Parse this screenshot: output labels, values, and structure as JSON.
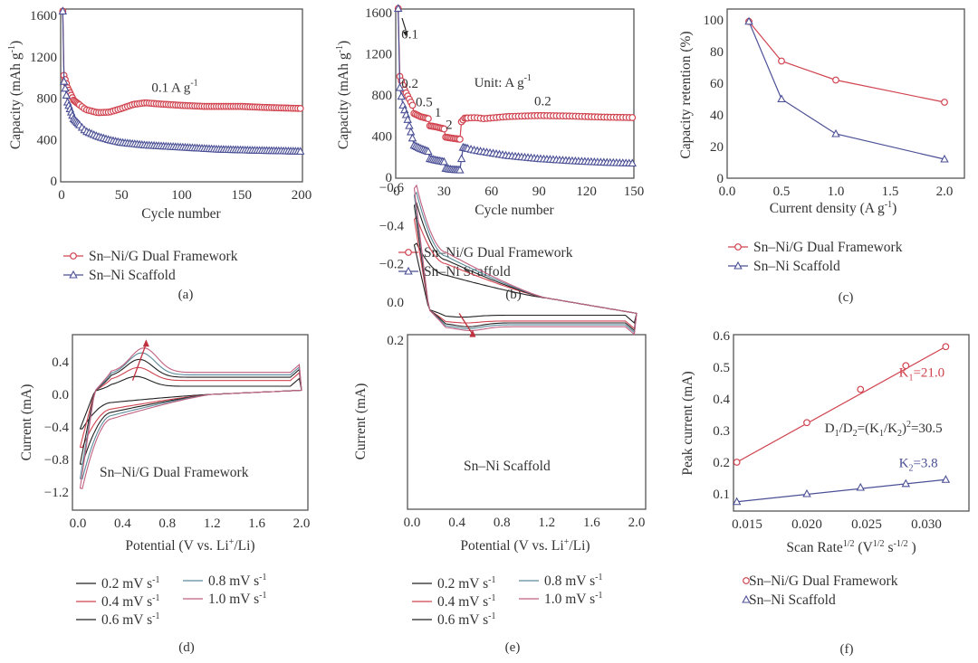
{
  "colors": {
    "red": "#d0434f",
    "blue": "#4a4f95",
    "frame": "#555555",
    "black": "#222222",
    "teal": "#5a8a9a",
    "pink": "#c06080",
    "arrow": "#c0303f"
  },
  "chart_data": [
    {
      "id": "a",
      "type": "scatter",
      "caption": "(a)",
      "xlabel": "Cycle number",
      "ylabel": "Capacity (mAh g^-1)",
      "xlim": [
        0,
        200
      ],
      "ylim": [
        0,
        1650
      ],
      "xticks": [
        0,
        50,
        100,
        150,
        200
      ],
      "yticks": [
        0,
        400,
        800,
        1200,
        1600
      ],
      "annotations": [
        {
          "text": "0.1 A g",
          "sup": "-1",
          "x": 75,
          "y": 860
        }
      ],
      "legend": [
        "Sn–Ni/G Dual Framework",
        "Sn–Ni Scaffold"
      ],
      "series": [
        {
          "name": "Sn–Ni/G Dual Framework",
          "marker": "circle",
          "color": "red",
          "points": [
            [
              1,
              1640
            ],
            [
              2,
              1020
            ],
            [
              5,
              900
            ],
            [
              10,
              780
            ],
            [
              20,
              690
            ],
            [
              30,
              660
            ],
            [
              40,
              665
            ],
            [
              50,
              700
            ],
            [
              60,
              740
            ],
            [
              70,
              755
            ],
            [
              80,
              745
            ],
            [
              100,
              730
            ],
            [
              120,
              720
            ],
            [
              150,
              720
            ],
            [
              170,
              710
            ],
            [
              200,
              700
            ]
          ]
        },
        {
          "name": "Sn–Ni Scaffold",
          "marker": "triangle",
          "color": "blue",
          "points": [
            [
              1,
              1640
            ],
            [
              2,
              960
            ],
            [
              5,
              760
            ],
            [
              10,
              600
            ],
            [
              20,
              480
            ],
            [
              30,
              430
            ],
            [
              40,
              395
            ],
            [
              50,
              370
            ],
            [
              70,
              345
            ],
            [
              100,
              325
            ],
            [
              130,
              305
            ],
            [
              160,
              295
            ],
            [
              200,
              285
            ]
          ]
        }
      ]
    },
    {
      "id": "b",
      "type": "scatter",
      "caption": "(b)",
      "xlabel": "Cycle number",
      "ylabel": "Capacity (mAh g^-1)",
      "xlim": [
        0,
        150
      ],
      "ylim": [
        0,
        1650
      ],
      "xticks": [
        0,
        30,
        60,
        90,
        120,
        150
      ],
      "yticks": [
        0,
        400,
        800,
        1200,
        1600
      ],
      "annotations": [
        {
          "text": "0.1",
          "x": 3,
          "y": 1350
        },
        {
          "text": "0.2",
          "x": 3,
          "y": 870
        },
        {
          "text": "0.5",
          "x": 12,
          "y": 690
        },
        {
          "text": "1",
          "x": 24,
          "y": 590
        },
        {
          "text": "2",
          "x": 31,
          "y": 470
        },
        {
          "text": "Unit: A g",
          "sup": "-1",
          "x": 49,
          "y": 880
        },
        {
          "text": "0.2",
          "x": 87,
          "y": 700
        }
      ],
      "legend": [
        "Sn–Ni/G Dual Framework",
        "Sn–Ni Scaffold"
      ],
      "series": [
        {
          "name": "Sn–Ni/G Dual Framework",
          "marker": "circle",
          "color": "red",
          "points": [
            [
              1,
              1640
            ],
            [
              2,
              980
            ],
            [
              5,
              850
            ],
            [
              10,
              700
            ],
            [
              11,
              620
            ],
            [
              15,
              590
            ],
            [
              20,
              570
            ],
            [
              21,
              500
            ],
            [
              25,
              490
            ],
            [
              30,
              470
            ],
            [
              31,
              390
            ],
            [
              35,
              380
            ],
            [
              40,
              370
            ],
            [
              41,
              540
            ],
            [
              43,
              575
            ],
            [
              50,
              580
            ],
            [
              55,
              570
            ],
            [
              70,
              590
            ],
            [
              90,
              600
            ],
            [
              110,
              595
            ],
            [
              130,
              585
            ],
            [
              150,
              580
            ]
          ]
        },
        {
          "name": "Sn–Ni Scaffold",
          "marker": "triangle",
          "color": "blue",
          "points": [
            [
              1,
              1640
            ],
            [
              2,
              870
            ],
            [
              4,
              700
            ],
            [
              7,
              560
            ],
            [
              10,
              380
            ],
            [
              11,
              310
            ],
            [
              15,
              280
            ],
            [
              20,
              250
            ],
            [
              21,
              180
            ],
            [
              25,
              165
            ],
            [
              30,
              150
            ],
            [
              31,
              85
            ],
            [
              35,
              75
            ],
            [
              40,
              70
            ],
            [
              41,
              180
            ],
            [
              42,
              290
            ],
            [
              50,
              260
            ],
            [
              70,
              210
            ],
            [
              90,
              180
            ],
            [
              110,
              160
            ],
            [
              130,
              145
            ],
            [
              150,
              135
            ]
          ]
        }
      ]
    },
    {
      "id": "c",
      "type": "line",
      "caption": "(c)",
      "xlabel": "Current density (A g^-1)",
      "ylabel": "Capacity retention (%)",
      "xlim": [
        0,
        2.2
      ],
      "ylim": [
        0,
        108
      ],
      "xticks": [
        0.0,
        0.5,
        1.0,
        1.5,
        2.0
      ],
      "yticks": [
        0,
        20,
        40,
        60,
        80,
        100
      ],
      "legend": [
        "Sn–Ni/G Dual Framework",
        "Sn–Ni Scaffold"
      ],
      "x": [
        0.2,
        0.5,
        1.0,
        2.0
      ],
      "series": [
        {
          "name": "Sn–Ni/G Dual Framework",
          "marker": "circle",
          "color": "red",
          "values": [
            99,
            74,
            62,
            48
          ]
        },
        {
          "name": "Sn–Ni Scaffold",
          "marker": "triangle",
          "color": "blue",
          "values": [
            99,
            50,
            28,
            12
          ]
        }
      ]
    },
    {
      "id": "d",
      "type": "line",
      "caption": "(d)",
      "xlabel": "Potential (V vs. Li+/Li)",
      "ylabel": "Current (mA)",
      "xlim": [
        -0.05,
        2.05
      ],
      "ylim": [
        -1.35,
        0.72
      ],
      "xticks": [
        0.0,
        0.4,
        0.8,
        1.2,
        1.6,
        2.0
      ],
      "yticks": [
        -1.2,
        -0.8,
        -0.4,
        0.0,
        0.4
      ],
      "yticklabels": [
        "−1.2",
        "−0.8",
        "−0.4",
        "0.0",
        "0.4"
      ],
      "inset_label": "Sn–Ni/G Dual Framework",
      "legend": [
        "0.2 mV s^-1",
        "0.4 mV s^-1",
        "0.6 mV s^-1",
        "0.8 mV s^-1",
        "1.0 mV s^-1"
      ],
      "series": [
        {
          "name": "0.2 mV s-1",
          "color": "black",
          "peak": 0.22,
          "peak_v": 0.52,
          "plateau": 0.1,
          "min": -0.47,
          "cath": -0.1
        },
        {
          "name": "0.4 mV s-1",
          "color": "red",
          "peak": 0.33,
          "peak_v": 0.54,
          "plateau": 0.17,
          "min": -0.72,
          "cath": -0.18
        },
        {
          "name": "0.6 mV s-1",
          "color": "black",
          "peak": 0.43,
          "peak_v": 0.55,
          "plateau": 0.21,
          "min": -0.95,
          "cath": -0.22
        },
        {
          "name": "0.8 mV s-1",
          "color": "teal",
          "peak": 0.51,
          "peak_v": 0.57,
          "plateau": 0.24,
          "min": -1.15,
          "cath": -0.26
        },
        {
          "name": "1.0 mV s-1",
          "color": "pink",
          "peak": 0.57,
          "peak_v": 0.59,
          "plateau": 0.27,
          "min": -1.28,
          "cath": -0.3
        }
      ]
    },
    {
      "id": "e",
      "type": "line",
      "caption": "(e)",
      "xlabel": "Potential (V vs. Li+/Li)",
      "ylabel": "Current (mA)",
      "xlim": [
        -0.05,
        2.05
      ],
      "ylim": [
        -0.7,
        0.23
      ],
      "xticks": [
        0.0,
        0.4,
        0.8,
        1.2,
        1.6,
        2.0
      ],
      "yticks": [
        -0.6,
        -0.4,
        -0.2,
        0.0,
        0.2
      ],
      "yticklabels": [
        "−0.6",
        "−0.4",
        "−0.2",
        "0.0",
        "0.2"
      ],
      "inset_label": "Sn–Ni Scaffold",
      "legend": [
        "0.2 mV s^-1",
        "0.4 mV s^-1",
        "0.6 mV s^-1",
        "0.8 mV s^-1",
        "1.0 mV s^-1"
      ],
      "series": [
        {
          "name": "0.2 mV s-1",
          "color": "black",
          "peak": 0.08,
          "peak_v": 0.45,
          "plateau": 0.07,
          "min": -0.33,
          "cath": -0.14
        },
        {
          "name": "0.4 mV s-1",
          "color": "red",
          "peak": 0.11,
          "peak_v": 0.48,
          "plateau": 0.1,
          "min": -0.48,
          "cath": -0.2
        },
        {
          "name": "0.6 mV s-1",
          "color": "black",
          "peak": 0.13,
          "peak_v": 0.5,
          "plateau": 0.11,
          "min": -0.56,
          "cath": -0.22
        },
        {
          "name": "0.8 mV s-1",
          "color": "teal",
          "peak": 0.14,
          "peak_v": 0.5,
          "plateau": 0.12,
          "min": -0.62,
          "cath": -0.24
        },
        {
          "name": "1.0 mV s-1",
          "color": "pink",
          "peak": 0.15,
          "peak_v": 0.52,
          "plateau": 0.13,
          "min": -0.66,
          "cath": -0.26
        }
      ]
    },
    {
      "id": "f",
      "type": "scatter",
      "caption": "(f)",
      "xlabel": "Scan Rate^1/2 (V^1/2 s^-1/2)",
      "ylabel": "Peak current (mA)",
      "xlim": [
        0.013,
        0.0328
      ],
      "ylim": [
        0.045,
        0.605
      ],
      "xticks": [
        0.015,
        0.02,
        0.025,
        0.03
      ],
      "xticklabels": [
        "0.015",
        "0.020",
        "0.025",
        "0.030"
      ],
      "yticks": [
        0.1,
        0.2,
        0.3,
        0.4,
        0.5,
        0.6
      ],
      "annotations": [
        {
          "text": "K1=21.0",
          "x": 0.0277,
          "y": 0.47,
          "color": "red"
        },
        {
          "text": "D1/D2=(K1/K2)^2=30.5",
          "x": 0.0215,
          "y": 0.295,
          "color": "black"
        },
        {
          "text": "K2=3.8",
          "x": 0.0277,
          "y": 0.185,
          "color": "blue"
        }
      ],
      "legend": [
        "Sn–Ni/G Dual Framework",
        "Sn–Ni Scaffold"
      ],
      "x": [
        0.01414,
        0.02,
        0.02449,
        0.02828,
        0.03162
      ],
      "series": [
        {
          "name": "Sn–Ni/G Dual Framework",
          "marker": "circle",
          "color": "red",
          "values": [
            0.2,
            0.325,
            0.43,
            0.505,
            0.565
          ],
          "fit": [
            0.2,
            0.565
          ]
        },
        {
          "name": "Sn–Ni Scaffold",
          "marker": "triangle",
          "color": "blue",
          "values": [
            0.075,
            0.1,
            0.12,
            0.132,
            0.145
          ],
          "fit": [
            0.075,
            0.145
          ]
        }
      ]
    }
  ]
}
